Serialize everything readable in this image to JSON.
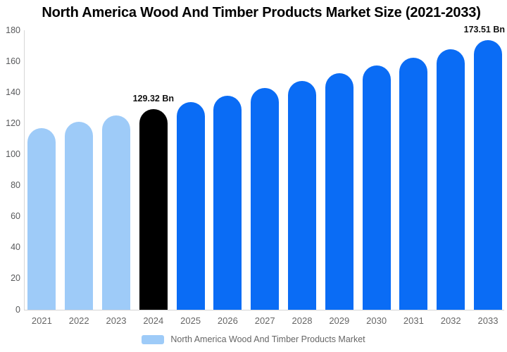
{
  "title": "North America Wood And Timber Products Market Size (2021-2033)",
  "chart_data": {
    "type": "bar",
    "title": "North America Wood And Timber Products Market Size (2021-2033)",
    "xlabel": "",
    "ylabel": "",
    "categories": [
      "2021",
      "2022",
      "2023",
      "2024",
      "2025",
      "2026",
      "2027",
      "2028",
      "2029",
      "2030",
      "2031",
      "2032",
      "2033"
    ],
    "values": [
      117.2,
      121.1,
      125.2,
      129.32,
      133.6,
      138.0,
      142.6,
      147.4,
      152.3,
      157.3,
      162.5,
      167.9,
      173.51
    ],
    "unit": "Bn",
    "ylim": [
      0,
      180
    ],
    "yticks": [
      0,
      20,
      40,
      60,
      80,
      100,
      120,
      140,
      160,
      180
    ],
    "grid": false,
    "bar_colors": [
      "#9ecbf8",
      "#9ecbf8",
      "#9ecbf8",
      "#000000",
      "#0a6cf5",
      "#0a6cf5",
      "#0a6cf5",
      "#0a6cf5",
      "#0a6cf5",
      "#0a6cf5",
      "#0a6cf5",
      "#0a6cf5",
      "#0a6cf5"
    ],
    "annotations": [
      {
        "category": "2024",
        "text": "129.32 Bn"
      },
      {
        "category": "2033",
        "text": "173.51 Bn"
      }
    ],
    "legend_position": "bottom",
    "legend_label": "North America Wood And Timber Products Market"
  },
  "legend": {
    "label": "North America Wood And Timber Products Market",
    "swatch_color": "#9ecbf8"
  },
  "colors": {
    "past_bar": "#9ecbf8",
    "highlight_bar": "#000000",
    "forecast_bar": "#0a6cf5",
    "axis_line": "#d6d6d6",
    "y_tick_text": "#58595b",
    "x_tick_text": "#666666",
    "annotation_text": "#111111",
    "legend_text": "#666666",
    "title_text": "#000000"
  }
}
